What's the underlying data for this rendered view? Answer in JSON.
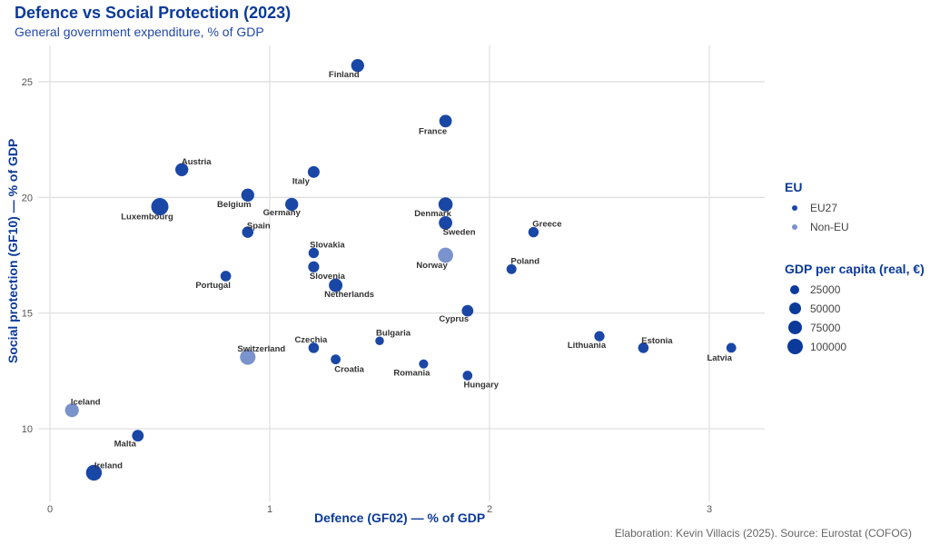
{
  "chart_data": {
    "type": "scatter",
    "title": "Defence vs Social Protection (2023)",
    "subtitle": "General government expenditure, % of GDP",
    "xlabel": "Defence (GF02) — % of GDP",
    "ylabel": "Social protection (GF10) — % of GDP",
    "caption": "Elaboration: Kevin Villacis (2025). Source: Eurostat (COFOG)",
    "xlim": [
      -0.05,
      3.25
    ],
    "ylim": [
      7.3,
      26.5
    ],
    "xticks": [
      0,
      1,
      2,
      3
    ],
    "yticks": [
      10,
      15,
      20,
      25
    ],
    "grid": true,
    "colors": {
      "EU27": "#1a47a6",
      "Non-EU": "#7a93cc"
    },
    "legend_position": "right",
    "legend": {
      "color_title": "EU",
      "color_entries": [
        "EU27",
        "Non-EU"
      ],
      "size_title": "GDP per capita (real, €)",
      "size_entries": [
        25000,
        50000,
        75000,
        100000
      ]
    },
    "points": [
      {
        "country": "Finland",
        "x": 1.4,
        "y": 25.7,
        "group": "EU27",
        "gdp": 45000
      },
      {
        "country": "France",
        "x": 1.8,
        "y": 23.3,
        "group": "EU27",
        "gdp": 40000
      },
      {
        "country": "Austria",
        "x": 0.6,
        "y": 21.2,
        "group": "EU27",
        "gdp": 45000
      },
      {
        "country": "Italy",
        "x": 1.2,
        "y": 21.1,
        "group": "EU27",
        "gdp": 32000
      },
      {
        "country": "Belgium",
        "x": 0.9,
        "y": 20.1,
        "group": "EU27",
        "gdp": 45000
      },
      {
        "country": "Luxembourg",
        "x": 0.5,
        "y": 19.6,
        "group": "EU27",
        "gdp": 110000
      },
      {
        "country": "Germany",
        "x": 1.1,
        "y": 19.7,
        "group": "EU27",
        "gdp": 45000
      },
      {
        "country": "Denmark",
        "x": 1.8,
        "y": 19.7,
        "group": "EU27",
        "gdp": 60000
      },
      {
        "country": "Sweden",
        "x": 1.8,
        "y": 18.9,
        "group": "EU27",
        "gdp": 50000
      },
      {
        "country": "Spain",
        "x": 0.9,
        "y": 18.5,
        "group": "EU27",
        "gdp": 28000
      },
      {
        "country": "Greece",
        "x": 2.2,
        "y": 18.5,
        "group": "EU27",
        "gdp": 19000
      },
      {
        "country": "Slovakia",
        "x": 1.2,
        "y": 17.6,
        "group": "EU27",
        "gdp": 19000
      },
      {
        "country": "Norway",
        "x": 1.8,
        "y": 17.5,
        "group": "Non-EU",
        "gdp": 75000
      },
      {
        "country": "Slovenia",
        "x": 1.2,
        "y": 17.0,
        "group": "EU27",
        "gdp": 25000
      },
      {
        "country": "Poland",
        "x": 2.1,
        "y": 16.9,
        "group": "EU27",
        "gdp": 16000
      },
      {
        "country": "Portugal",
        "x": 0.8,
        "y": 16.6,
        "group": "EU27",
        "gdp": 21000
      },
      {
        "country": "Netherlands",
        "x": 1.3,
        "y": 16.2,
        "group": "EU27",
        "gdp": 52000
      },
      {
        "country": "Cyprus",
        "x": 1.9,
        "y": 15.1,
        "group": "EU27",
        "gdp": 30000
      },
      {
        "country": "Lithuania",
        "x": 2.5,
        "y": 14.0,
        "group": "EU27",
        "gdp": 18000
      },
      {
        "country": "Bulgaria",
        "x": 1.5,
        "y": 13.8,
        "group": "EU27",
        "gdp": 8000
      },
      {
        "country": "Czechia",
        "x": 1.2,
        "y": 13.5,
        "group": "EU27",
        "gdp": 20000
      },
      {
        "country": "Estonia",
        "x": 2.7,
        "y": 13.5,
        "group": "EU27",
        "gdp": 20000
      },
      {
        "country": "Latvia",
        "x": 3.1,
        "y": 13.5,
        "group": "EU27",
        "gdp": 15000
      },
      {
        "country": "Switzerland",
        "x": 0.9,
        "y": 13.1,
        "group": "Non-EU",
        "gdp": 80000
      },
      {
        "country": "Croatia",
        "x": 1.3,
        "y": 13.0,
        "group": "EU27",
        "gdp": 15000
      },
      {
        "country": "Romania",
        "x": 1.7,
        "y": 12.8,
        "group": "EU27",
        "gdp": 11000
      },
      {
        "country": "Hungary",
        "x": 1.9,
        "y": 12.3,
        "group": "EU27",
        "gdp": 14000
      },
      {
        "country": "Iceland",
        "x": 0.1,
        "y": 10.8,
        "group": "Non-EU",
        "gdp": 55000
      },
      {
        "country": "Malta",
        "x": 0.4,
        "y": 9.7,
        "group": "EU27",
        "gdp": 30000
      },
      {
        "country": "Ireland",
        "x": 0.2,
        "y": 8.1,
        "group": "EU27",
        "gdp": 85000
      }
    ]
  }
}
